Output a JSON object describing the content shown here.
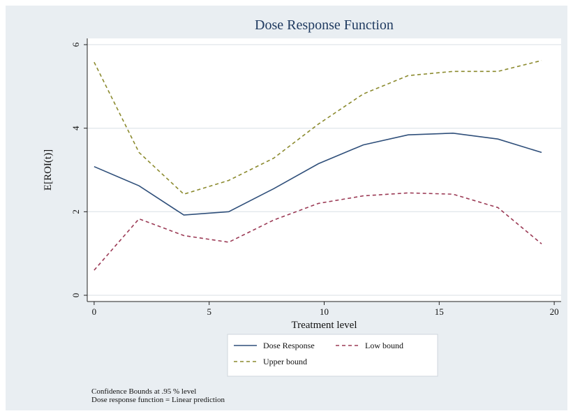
{
  "chart_data": {
    "type": "line",
    "title": "Dose Response Function",
    "xlabel": "Treatment level",
    "ylabel": "E[ROI(t)]",
    "xlim": [
      -0.3,
      20.3
    ],
    "ylim": [
      -0.15,
      6.15
    ],
    "xticks": [
      0,
      5,
      10,
      15,
      20
    ],
    "yticks": [
      0,
      2,
      4,
      6
    ],
    "grid": true,
    "legend_position": "bottom",
    "x": [
      0,
      1.95,
      3.9,
      5.85,
      7.8,
      9.75,
      11.7,
      13.65,
      15.6,
      17.55,
      19.45
    ],
    "series": [
      {
        "name": "Dose Response",
        "color": "#2f4f7a",
        "dash": "solid",
        "values": [
          3.08,
          2.62,
          1.92,
          2.0,
          2.55,
          3.15,
          3.6,
          3.84,
          3.88,
          3.74,
          3.42
        ]
      },
      {
        "name": "Upper bound",
        "color": "#8b8a2e",
        "dash": "dashed",
        "values": [
          5.58,
          3.42,
          2.42,
          2.75,
          3.28,
          4.1,
          4.82,
          5.26,
          5.36,
          5.36,
          5.62
        ]
      },
      {
        "name": "Low bound",
        "color": "#9b3a55",
        "dash": "dashed",
        "values": [
          0.6,
          1.83,
          1.43,
          1.27,
          1.8,
          2.2,
          2.38,
          2.45,
          2.42,
          2.1,
          1.23
        ]
      }
    ]
  },
  "notes": [
    "Confidence Bounds at .95 % level",
    "Dose response function = Linear prediction"
  ],
  "colors": {
    "plot_background": "#ffffff",
    "outer_background": "#e9eef2",
    "grid": "#e3e8ec"
  }
}
